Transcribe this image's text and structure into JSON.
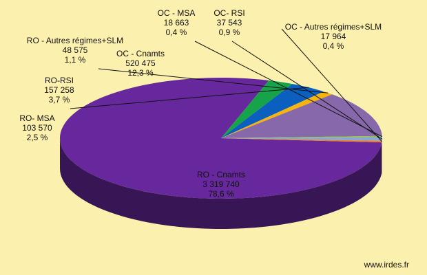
{
  "chart_data": {
    "type": "pie",
    "title": "",
    "slices": [
      {
        "name": "RO - Cnamts",
        "value_text": "3 319 740",
        "pct_text": "78,6 %",
        "value": 3319740,
        "pct": 78.6,
        "color": "#66289c"
      },
      {
        "name": "RO- MSA",
        "value_text": "103 570",
        "pct_text": "2,5 %",
        "value": 103570,
        "pct": 2.5,
        "color": "#17a34a"
      },
      {
        "name": "RO-RSI",
        "value_text": "157 258",
        "pct_text": "3,7 %",
        "value": 157258,
        "pct": 3.7,
        "color": "#0a5fbf"
      },
      {
        "name": "RO - Autres régimes+SLM",
        "value_text": "48 575",
        "pct_text": "1,1 %",
        "value": 48575,
        "pct": 1.1,
        "color": "#f6b40e"
      },
      {
        "name": "OC - Cnamts",
        "value_text": "520 475",
        "pct_text": "12,3 %",
        "value": 520475,
        "pct": 12.3,
        "color": "#8768ab"
      },
      {
        "name": "OC - MSA",
        "value_text": "18 663",
        "pct_text": "0,4 %",
        "value": 18663,
        "pct": 0.4,
        "color": "#8fbf5a"
      },
      {
        "name": "OC- RSI",
        "value_text": "37 543",
        "pct_text": "0,9 %",
        "value": 37543,
        "pct": 0.9,
        "color": "#8aa7d6"
      },
      {
        "name": "OC - Autres régimes+SLM",
        "value_text": "17 964",
        "pct_text": "0,4 %",
        "value": 17964,
        "pct": 0.4,
        "color": "#f07b2a"
      }
    ]
  },
  "credit": "www.irdes.fr"
}
